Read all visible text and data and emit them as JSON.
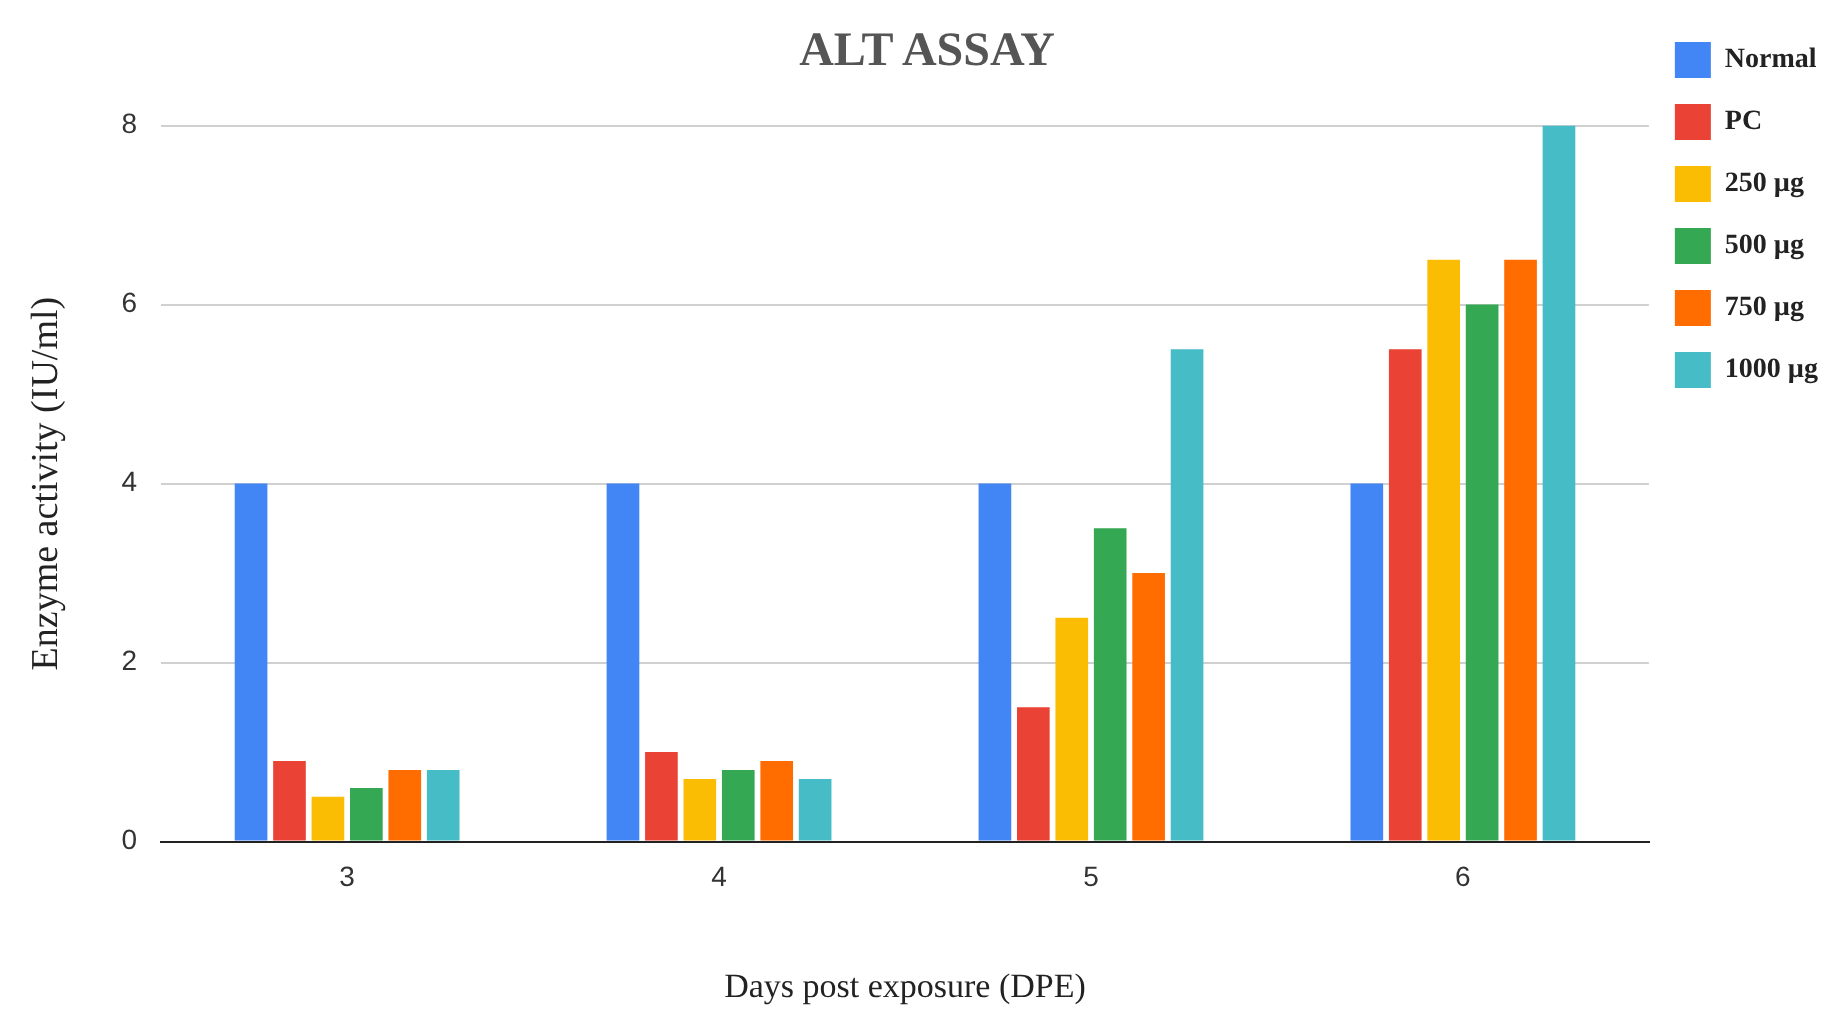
{
  "chart_data": {
    "type": "bar",
    "title": "ALT ASSAY",
    "xlabel": "Days post exposure (DPE)",
    "ylabel": "Enzyme activity (IU/ml)",
    "categories": [
      "3",
      "4",
      "5",
      "6"
    ],
    "series": [
      {
        "name": "Normal",
        "color": "#4285f4",
        "values": [
          4,
          4,
          4,
          4
        ]
      },
      {
        "name": "PC",
        "color": "#ea4335",
        "values": [
          0.9,
          1.0,
          1.5,
          5.5
        ]
      },
      {
        "name": "250 µg",
        "color": "#fbbc04",
        "values": [
          0.5,
          0.7,
          2.5,
          6.5
        ]
      },
      {
        "name": "500 µg",
        "color": "#34a853",
        "values": [
          0.6,
          0.8,
          3.5,
          6
        ]
      },
      {
        "name": "750 µg",
        "color": "#ff6d01",
        "values": [
          0.8,
          0.9,
          3,
          6.5
        ]
      },
      {
        "name": "1000 µg",
        "color": "#46bdc6",
        "values": [
          0.8,
          0.7,
          5.5,
          8
        ]
      }
    ],
    "ylim": [
      0,
      8
    ],
    "yticks": [
      0,
      2,
      4,
      6,
      8
    ],
    "grid": "y",
    "legend": "right"
  }
}
